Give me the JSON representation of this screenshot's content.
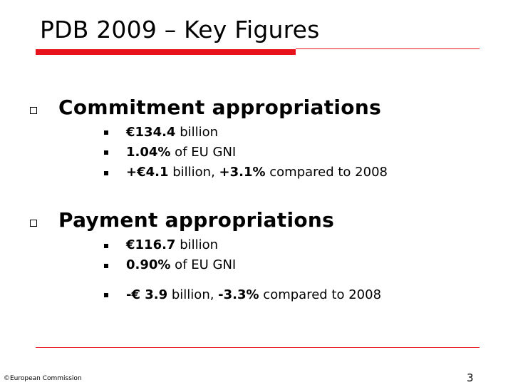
{
  "slide": {
    "title": "PDB 2009 – Key Figures",
    "sections": [
      {
        "heading": "Commitment appropriations",
        "items": [
          {
            "bold": "€134.4",
            "rest": " billion"
          },
          {
            "bold": "1.04%",
            "rest": " of EU GNI"
          },
          {
            "bold": "+€4.1",
            "mid": " billion, ",
            "bold2": "+3.1%",
            "rest": " compared to 2008"
          }
        ]
      },
      {
        "heading": "Payment appropriations",
        "items": [
          {
            "bold": "€116.7",
            "rest": " billion"
          },
          {
            "bold": "0.90%",
            "rest": " of EU GNI"
          },
          {
            "bold": "-€ 3.9",
            "mid": " billion, ",
            "bold2": "-3.3%",
            "rest": " compared to 2008"
          }
        ]
      }
    ],
    "footer": {
      "copyright": "©European Commission",
      "page_number": "3"
    },
    "colors": {
      "accent_red": "#e8131a",
      "text": "#000000",
      "background": "#ffffff"
    }
  }
}
